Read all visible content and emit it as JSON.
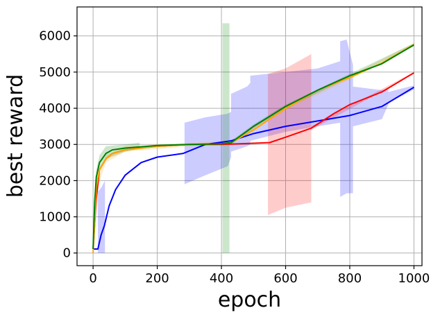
{
  "chart_data": {
    "type": "line",
    "xlabel": "epoch",
    "ylabel": "best reward",
    "xlim": [
      -50,
      1025
    ],
    "ylim": [
      -350,
      6800
    ],
    "xticks": [
      0,
      200,
      400,
      600,
      800,
      1000
    ],
    "yticks": [
      0,
      1000,
      2000,
      3000,
      4000,
      5000,
      6000
    ],
    "grid": true,
    "series": [
      {
        "color": "#0000ff",
        "line": [
          [
            0,
            110
          ],
          [
            15,
            110
          ],
          [
            25,
            500
          ],
          [
            35,
            750
          ],
          [
            50,
            1300
          ],
          [
            70,
            1750
          ],
          [
            100,
            2150
          ],
          [
            150,
            2500
          ],
          [
            200,
            2650
          ],
          [
            280,
            2750
          ],
          [
            350,
            3000
          ],
          [
            430,
            3100
          ],
          [
            500,
            3300
          ],
          [
            600,
            3500
          ],
          [
            700,
            3650
          ],
          [
            800,
            3800
          ],
          [
            900,
            4050
          ],
          [
            1000,
            4580
          ]
        ],
        "band": [
          [
            [
              15,
              0,
              1700
            ],
            [
              25,
              0,
              1800
            ],
            [
              37,
              0,
              2000
            ]
          ],
          [
            [
              285,
              1900,
              3600
            ],
            [
              350,
              2150,
              3750
            ],
            [
              420,
              2400,
              3850
            ],
            [
              430,
              2650,
              3900
            ]
          ],
          [
            [
              430,
              2800,
              4400
            ],
            [
              480,
              2950,
              4600
            ],
            [
              490,
              3000,
              4700
            ]
          ],
          [
            [
              490,
              3100,
              4900
            ],
            [
              600,
              3350,
              5000
            ],
            [
              700,
              3500,
              5100
            ],
            [
              770,
              3600,
              5300
            ]
          ],
          [
            [
              770,
              1550,
              5850
            ],
            [
              790,
              1650,
              5900
            ],
            [
              810,
              1650,
              5200
            ]
          ],
          [
            [
              810,
              3500,
              4600
            ],
            [
              900,
              3700,
              4500
            ],
            [
              920,
              4100,
              4550
            ]
          ],
          [
            [
              920,
              4150,
              4450
            ],
            [
              1000,
              4520,
              4630
            ]
          ]
        ]
      },
      {
        "color": "#ff0000",
        "line": [
          [
            0,
            110
          ],
          [
            10,
            1500
          ],
          [
            20,
            2300
          ],
          [
            40,
            2600
          ],
          [
            60,
            2750
          ],
          [
            100,
            2850
          ],
          [
            200,
            2950
          ],
          [
            300,
            3000
          ],
          [
            400,
            3000
          ],
          [
            550,
            3050
          ],
          [
            600,
            3200
          ],
          [
            680,
            3450
          ],
          [
            750,
            3850
          ],
          [
            800,
            4100
          ],
          [
            900,
            4450
          ],
          [
            1000,
            4980
          ]
        ],
        "band": [
          [
            [
              545,
              1050,
              4950
            ],
            [
              600,
              1250,
              5100
            ],
            [
              680,
              1400,
              5500
            ]
          ],
          [
            [
              680,
              3400,
              3500
            ],
            [
              1000,
              4950,
              5000
            ]
          ]
        ]
      },
      {
        "color": "#ffa500",
        "line": [
          [
            0,
            0
          ],
          [
            5,
            800
          ],
          [
            10,
            1800
          ],
          [
            20,
            2300
          ],
          [
            40,
            2600
          ],
          [
            60,
            2750
          ],
          [
            100,
            2850
          ],
          [
            200,
            2950
          ],
          [
            300,
            3000
          ],
          [
            400,
            3020
          ],
          [
            430,
            3050
          ],
          [
            500,
            3400
          ],
          [
            600,
            4000
          ],
          [
            700,
            4500
          ],
          [
            800,
            4850
          ],
          [
            900,
            5250
          ],
          [
            1000,
            5760
          ]
        ],
        "band": [
          [
            [
              0,
              0,
              200
            ],
            [
              10,
              1700,
              1900
            ],
            [
              40,
              2500,
              2700
            ],
            [
              100,
              2800,
              2950
            ],
            [
              300,
              2950,
              3050
            ],
            [
              430,
              3000,
              3100
            ],
            [
              600,
              3950,
              4050
            ],
            [
              800,
              4800,
              4900
            ],
            [
              1000,
              5720,
              5800
            ]
          ]
        ]
      },
      {
        "color": "#008000",
        "line": [
          [
            0,
            110
          ],
          [
            5,
            1400
          ],
          [
            10,
            2100
          ],
          [
            20,
            2500
          ],
          [
            40,
            2750
          ],
          [
            60,
            2850
          ],
          [
            100,
            2900
          ],
          [
            200,
            2970
          ],
          [
            300,
            3000
          ],
          [
            400,
            3020
          ],
          [
            430,
            3050
          ],
          [
            500,
            3500
          ],
          [
            600,
            4050
          ],
          [
            700,
            4500
          ],
          [
            800,
            4900
          ],
          [
            900,
            5230
          ],
          [
            1000,
            5750
          ]
        ],
        "band": [
          [
            [
              0,
              0,
              200
            ],
            [
              10,
              1900,
              2300
            ],
            [
              20,
              2300,
              2700
            ],
            [
              40,
              2600,
              2950
            ],
            [
              100,
              2800,
              3000
            ],
            [
              145,
              2880,
              3050
            ]
          ],
          [
            [
              403,
              0,
              6350
            ],
            [
              418,
              0,
              6350
            ],
            [
              425,
              0,
              6350
            ]
          ],
          [
            [
              430,
              3000,
              3100
            ],
            [
              500,
              3450,
              3550
            ],
            [
              600,
              4000,
              4100
            ],
            [
              800,
              4850,
              4950
            ],
            [
              1000,
              5720,
              5800
            ]
          ]
        ]
      }
    ]
  }
}
